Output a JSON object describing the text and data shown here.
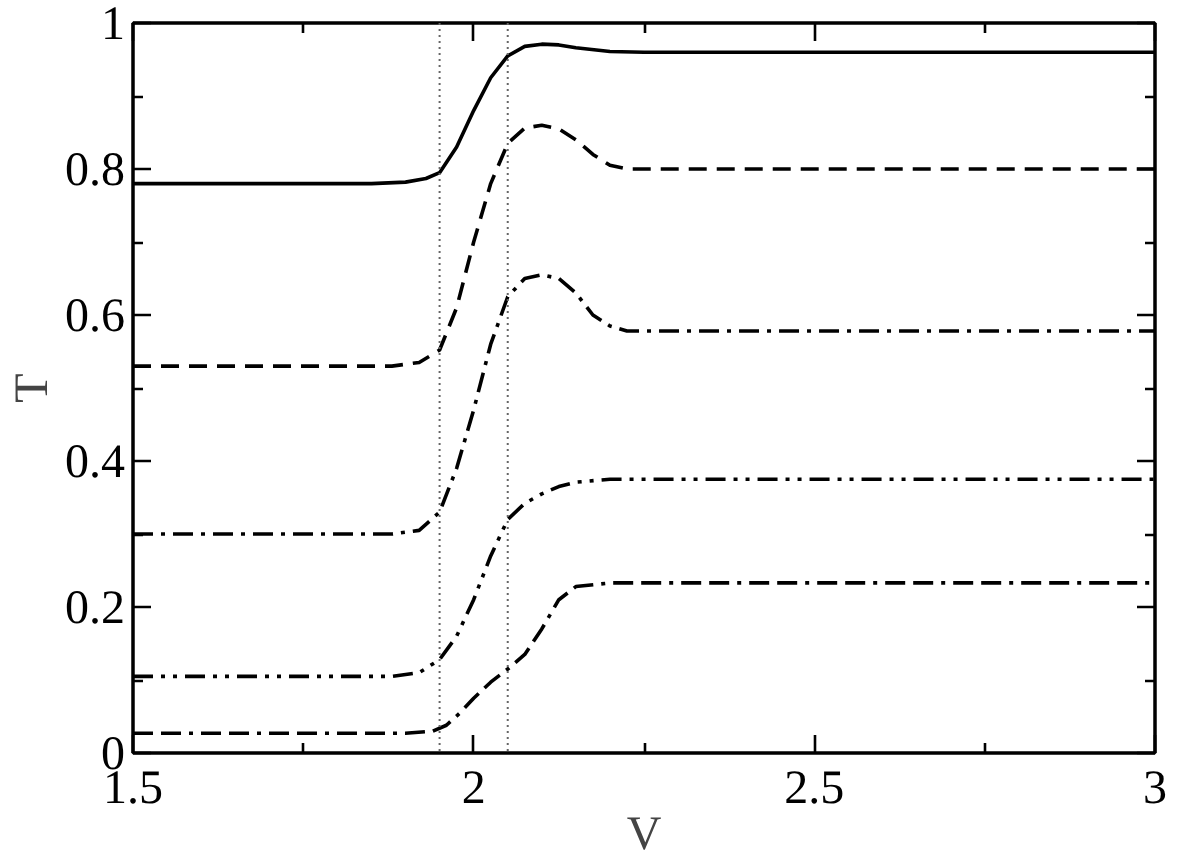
{
  "chart_data": {
    "type": "line",
    "xlabel": "V",
    "ylabel": "T",
    "xlim": [
      1.5,
      3
    ],
    "ylim": [
      0,
      1
    ],
    "xticks": [
      1.5,
      {
        "value": 1.75,
        "label": null
      },
      2,
      {
        "value": 2.25,
        "label": null
      },
      2.5,
      {
        "value": 2.75,
        "label": null
      },
      3
    ],
    "yticks": [
      0,
      {
        "value": 0.1,
        "label": null
      },
      0.2,
      {
        "value": 0.3,
        "label": null
      },
      0.4,
      {
        "value": 0.5,
        "label": null
      },
      0.6,
      {
        "value": 0.7,
        "label": null
      },
      0.8,
      {
        "value": 0.9,
        "label": null
      },
      1
    ],
    "grid": false,
    "marker": "none",
    "series": [
      {
        "color": "#000000",
        "line_style": "solid",
        "x": [
          1.5,
          1.85,
          1.9,
          1.93,
          1.95,
          1.975,
          2.0,
          2.025,
          2.05,
          2.075,
          2.1,
          2.125,
          2.15,
          2.2,
          2.25,
          3.0
        ],
        "values": [
          0.78,
          0.78,
          0.782,
          0.787,
          0.795,
          0.83,
          0.88,
          0.925,
          0.955,
          0.968,
          0.971,
          0.97,
          0.966,
          0.961,
          0.96,
          0.96
        ]
      },
      {
        "color": "#000000",
        "line_style": "dashed",
        "x": [
          1.5,
          1.88,
          1.92,
          1.95,
          1.975,
          2.0,
          2.025,
          2.05,
          2.075,
          2.1,
          2.125,
          2.15,
          2.175,
          2.2,
          2.225,
          3.0
        ],
        "values": [
          0.53,
          0.53,
          0.535,
          0.552,
          0.61,
          0.7,
          0.78,
          0.835,
          0.856,
          0.86,
          0.855,
          0.84,
          0.82,
          0.805,
          0.8,
          0.8
        ]
      },
      {
        "color": "#000000",
        "line_style": "dashdot",
        "x": [
          1.5,
          1.88,
          1.92,
          1.95,
          1.975,
          2.0,
          2.025,
          2.05,
          2.075,
          2.1,
          2.125,
          2.15,
          2.175,
          2.2,
          2.225,
          3.0
        ],
        "values": [
          0.3,
          0.3,
          0.305,
          0.33,
          0.39,
          0.47,
          0.56,
          0.625,
          0.65,
          0.655,
          0.65,
          0.63,
          0.6,
          0.585,
          0.578,
          0.578
        ]
      },
      {
        "color": "#000000",
        "line_style": "dashdotdot",
        "x": [
          1.5,
          1.88,
          1.92,
          1.95,
          1.975,
          2.0,
          2.025,
          2.05,
          2.075,
          2.1,
          2.125,
          2.15,
          2.2,
          3.0
        ],
        "values": [
          0.105,
          0.105,
          0.11,
          0.128,
          0.16,
          0.21,
          0.27,
          0.32,
          0.342,
          0.355,
          0.365,
          0.371,
          0.375,
          0.375
        ]
      },
      {
        "color": "#000000",
        "line_style": "dashdashdot",
        "x": [
          1.5,
          1.9,
          1.94,
          1.96,
          1.98,
          2.0,
          2.025,
          2.05,
          2.075,
          2.1,
          2.125,
          2.15,
          2.2,
          3.0
        ],
        "values": [
          0.027,
          0.027,
          0.03,
          0.038,
          0.055,
          0.075,
          0.097,
          0.115,
          0.135,
          0.17,
          0.21,
          0.228,
          0.233,
          0.233
        ]
      }
    ],
    "ref_lines": [
      {
        "axis": "x",
        "value": 1.95,
        "color": "#666666",
        "line_style": "dotted"
      },
      {
        "axis": "x",
        "value": 2.05,
        "color": "#666666",
        "line_style": "dotted"
      }
    ]
  }
}
